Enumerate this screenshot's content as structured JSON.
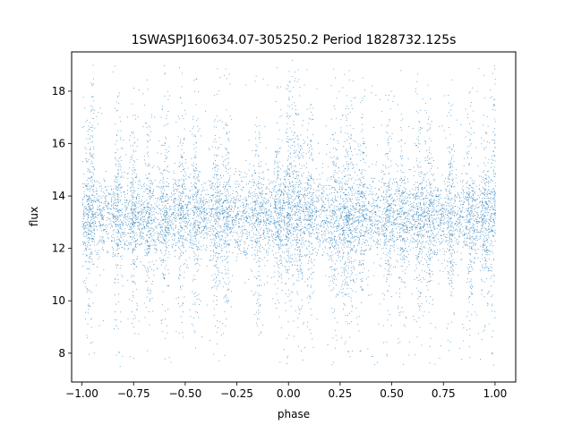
{
  "chart_data": {
    "type": "scatter",
    "title": "1SWASPJ160634.07-305250.2 Period 1828732.125s",
    "xlabel": "phase",
    "ylabel": "flux",
    "xlim": [
      -1.05,
      1.1
    ],
    "ylim": [
      6.9,
      19.5
    ],
    "x_ticks": [
      "−1.00",
      "−0.75",
      "−0.50",
      "−0.25",
      "0.00",
      "0.25",
      "0.50",
      "0.75",
      "1.00"
    ],
    "x_tick_values": [
      -1.0,
      -0.75,
      -0.5,
      -0.25,
      0.0,
      0.25,
      0.5,
      0.75,
      1.0
    ],
    "y_ticks": [
      "8",
      "10",
      "12",
      "14",
      "16",
      "18"
    ],
    "y_tick_values": [
      8,
      10,
      12,
      14,
      16,
      18
    ],
    "grid": false,
    "legend": "none",
    "marker_color": "#1f77b4",
    "series": [
      {
        "description": "phase-folded light curve, phase mirrored over [-1,1]; dense band centered near flux 13.2 spanning ~11.5-15.0, with vertical streaks of outliers reaching ~7.5 and ~19.2",
        "band_center": 13.2,
        "band_spread": 1.3,
        "max_flux": 19.2,
        "min_flux": 7.5,
        "spike_phases": [
          -0.97,
          -0.83,
          -0.75,
          -0.68,
          -0.6,
          -0.52,
          -0.45,
          -0.35,
          -0.3,
          -0.15,
          -0.05,
          0.0,
          0.05,
          0.1,
          0.22,
          0.27,
          0.3,
          0.35,
          0.48,
          0.55,
          0.63,
          0.68,
          0.78,
          0.88,
          0.95,
          1.0
        ],
        "tall_spike_phases": [
          -0.95,
          0.0,
          0.03,
          1.0
        ]
      }
    ]
  }
}
